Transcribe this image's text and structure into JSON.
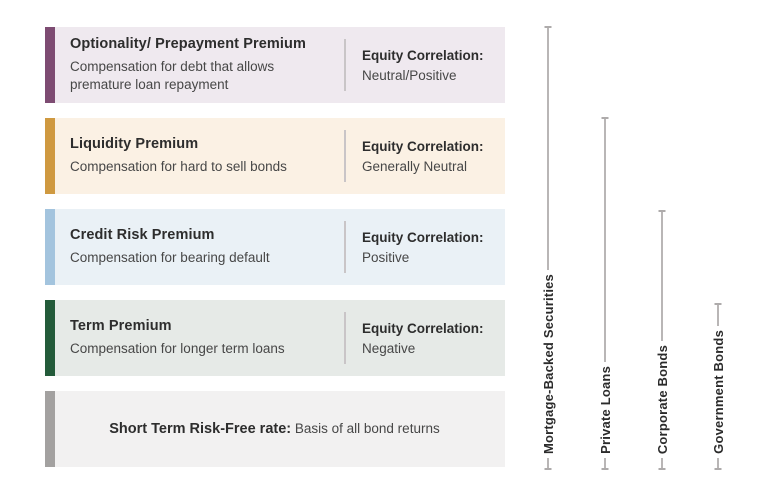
{
  "cards": [
    {
      "title": "Optionality/ Prepayment Premium",
      "description": "Compensation for debt that allows premature loan repayment",
      "equity_label": "Equity Correlation:",
      "equity_value": "Neutral/Positive",
      "accent": "#7d4b72",
      "bg": "#efe9ef"
    },
    {
      "title": "Liquidity Premium",
      "description": "Compensation for hard to sell bonds",
      "equity_label": "Equity Correlation:",
      "equity_value": "Generally Neutral",
      "accent": "#cf9940",
      "bg": "#fbf1e4"
    },
    {
      "title": "Credit Risk Premium",
      "description": "Compensation for bearing default",
      "equity_label": "Equity Correlation:",
      "equity_value": "Positive",
      "accent": "#a3c4de",
      "bg": "#eaf1f6"
    },
    {
      "title": "Term Premium",
      "description": "Compensation for longer term loans",
      "equity_label": "Equity Correlation:",
      "equity_value": "Negative",
      "accent": "#235b3a",
      "bg": "#e6eae7"
    },
    {
      "title": "Short Term Risk-Free rate:",
      "description": "Basis of all bond returns",
      "accent": "#a3a1a0",
      "bg": "#f2f1f1"
    }
  ],
  "measures": [
    {
      "label": "Mortgage-Backed Securities"
    },
    {
      "label": "Private Loans"
    },
    {
      "label": "Corporate Bonds"
    },
    {
      "label": "Government Bonds"
    }
  ]
}
